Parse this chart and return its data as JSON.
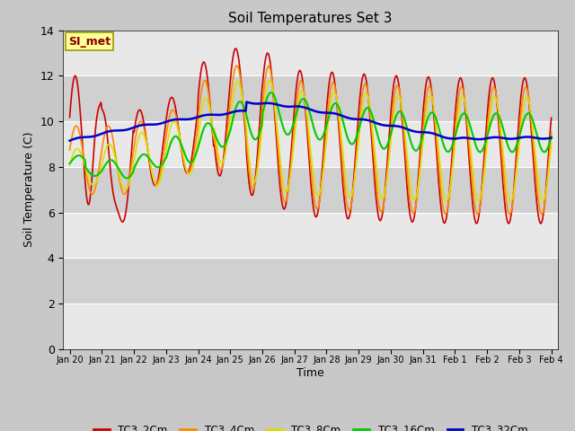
{
  "title": "Soil Temperatures Set 3",
  "xlabel": "Time",
  "ylabel": "Soil Temperature (C)",
  "ylim": [
    0,
    14
  ],
  "yticks": [
    0,
    2,
    4,
    6,
    8,
    10,
    12,
    14
  ],
  "colors": {
    "TC3_2Cm": "#cc0000",
    "TC3_4Cm": "#ff8800",
    "TC3_8Cm": "#dddd00",
    "TC3_16Cm": "#00cc00",
    "TC3_32Cm": "#0000cc"
  },
  "fig_bg": "#c8c8c8",
  "plot_bg": "#d8d8d8",
  "band_light": "#e8e8e8",
  "band_dark": "#d0d0d0",
  "annotation_text": "SI_met",
  "annotation_bg": "#ffff99",
  "annotation_border": "#999900",
  "annotation_color": "#880000",
  "xtick_labels": [
    "Jan 20",
    "Jan 21",
    "Jan 22",
    "Jan 23",
    "Jan 24",
    "Jan 25",
    "Jan 26",
    "Jan 27",
    "Jan 28",
    "Jan 29",
    "Jan 30",
    "Jan 31",
    "Feb 1",
    "Feb 2",
    "Feb 3",
    "Feb 4"
  ]
}
